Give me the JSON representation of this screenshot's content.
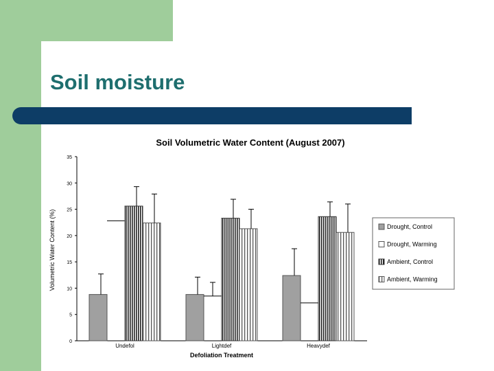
{
  "slide": {
    "title": "Soil moisture",
    "colors": {
      "background_accent": "#9fcd9b",
      "title_text": "#1e6e6e",
      "title_bar": "#0d3d66"
    }
  },
  "chart_data": {
    "type": "bar",
    "title": "Soil Volumetric Water Content (August 2007)",
    "xlabel": "Defoliation Treatment",
    "ylabel": "Volumetric Water Content (%)",
    "categories": [
      "Undefol",
      "Lightdef",
      "Heavydef"
    ],
    "ylim": [
      0,
      35
    ],
    "yticks": [
      "0",
      "5",
      "10",
      "15",
      "20",
      "25",
      "30",
      "35"
    ],
    "grid": false,
    "legend_position": "right",
    "error_bars": true,
    "series": [
      {
        "name": "Drought, Control",
        "values": [
          8.8,
          8.8,
          12.4
        ],
        "errors": [
          3.9,
          3.3,
          5.1
        ],
        "pattern": "gray"
      },
      {
        "name": "Drought, Warming",
        "values": [
          22.8,
          8.5,
          7.2
        ],
        "errors": [
          0,
          2.6,
          0
        ],
        "pattern": "white"
      },
      {
        "name": "Ambient, Control",
        "values": [
          25.6,
          23.3,
          23.6
        ],
        "errors": [
          3.7,
          3.6,
          2.8
        ],
        "pattern": "hatch-dense"
      },
      {
        "name": "Ambient, Warming",
        "values": [
          22.4,
          21.3,
          20.6
        ],
        "errors": [
          5.5,
          3.7,
          5.4
        ],
        "pattern": "hatch"
      }
    ]
  }
}
